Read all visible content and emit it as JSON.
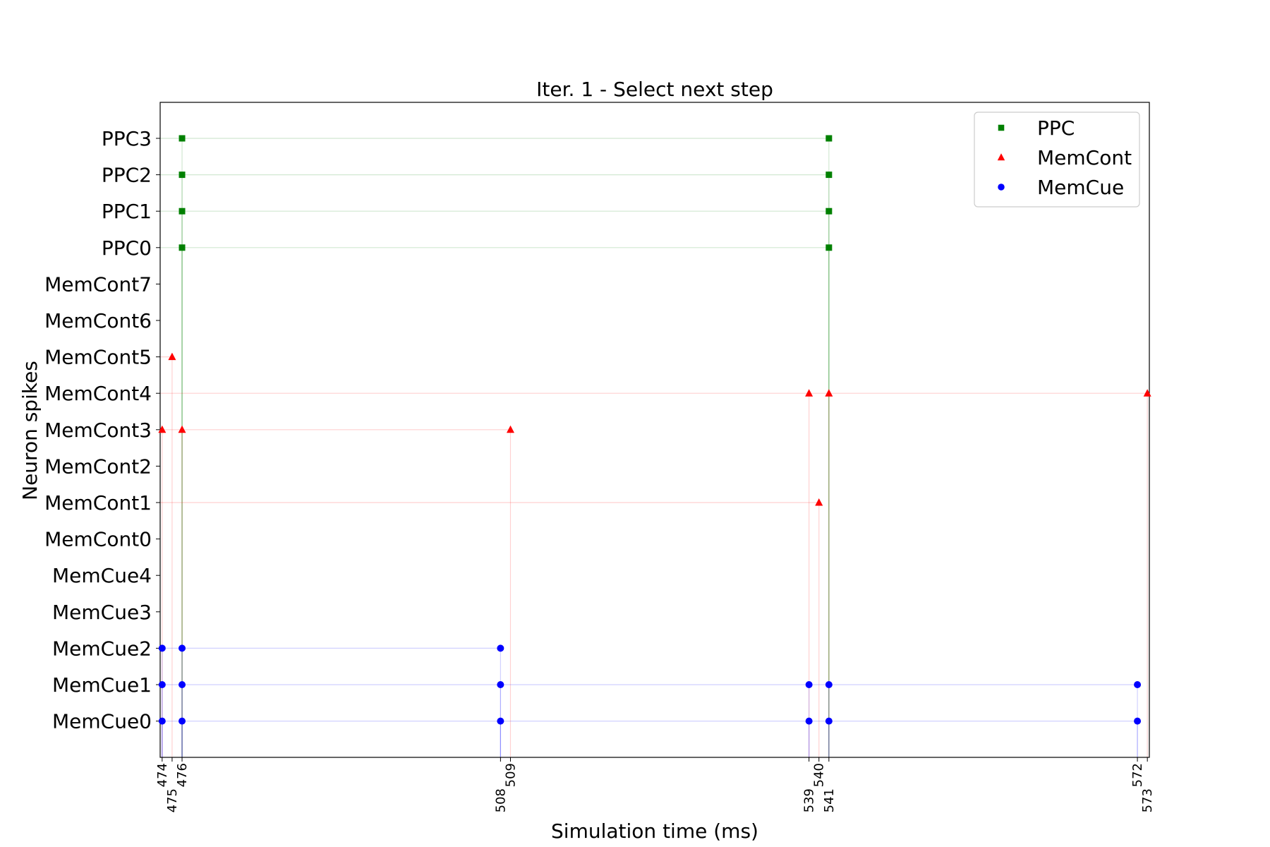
{
  "chart_data": {
    "type": "scatter",
    "title": "Iter. 1 - Select next step",
    "xlabel": "Simulation time (ms)",
    "ylabel": "Neuron spikes",
    "xlim": [
      473.8,
      573.2
    ],
    "x_ticks": [
      474,
      475,
      476,
      508,
      509,
      539,
      540,
      541,
      572,
      573
    ],
    "y_categories": [
      "MemCue0",
      "MemCue1",
      "MemCue2",
      "MemCue3",
      "MemCue4",
      "MemCont0",
      "MemCont1",
      "MemCont2",
      "MemCont3",
      "MemCont4",
      "MemCont5",
      "MemCont6",
      "MemCont7",
      "PPC0",
      "PPC1",
      "PPC2",
      "PPC3"
    ],
    "legend_position": "top-right",
    "grid": false,
    "series": [
      {
        "name": "PPC",
        "color": "#008000",
        "marker": "square",
        "points": [
          {
            "x": 476,
            "y": "PPC0"
          },
          {
            "x": 476,
            "y": "PPC1"
          },
          {
            "x": 476,
            "y": "PPC2"
          },
          {
            "x": 476,
            "y": "PPC3"
          },
          {
            "x": 541,
            "y": "PPC0"
          },
          {
            "x": 541,
            "y": "PPC1"
          },
          {
            "x": 541,
            "y": "PPC2"
          },
          {
            "x": 541,
            "y": "PPC3"
          }
        ]
      },
      {
        "name": "MemCont",
        "color": "#ff0000",
        "marker": "triangle",
        "points": [
          {
            "x": 474,
            "y": "MemCont3"
          },
          {
            "x": 475,
            "y": "MemCont5"
          },
          {
            "x": 476,
            "y": "MemCont3"
          },
          {
            "x": 509,
            "y": "MemCont3"
          },
          {
            "x": 539,
            "y": "MemCont4"
          },
          {
            "x": 540,
            "y": "MemCont1"
          },
          {
            "x": 541,
            "y": "MemCont4"
          },
          {
            "x": 573,
            "y": "MemCont4"
          }
        ]
      },
      {
        "name": "MemCue",
        "color": "#0000ff",
        "marker": "circle",
        "points": [
          {
            "x": 474,
            "y": "MemCue0"
          },
          {
            "x": 474,
            "y": "MemCue1"
          },
          {
            "x": 474,
            "y": "MemCue2"
          },
          {
            "x": 476,
            "y": "MemCue0"
          },
          {
            "x": 476,
            "y": "MemCue1"
          },
          {
            "x": 476,
            "y": "MemCue2"
          },
          {
            "x": 508,
            "y": "MemCue0"
          },
          {
            "x": 508,
            "y": "MemCue1"
          },
          {
            "x": 508,
            "y": "MemCue2"
          },
          {
            "x": 539,
            "y": "MemCue0"
          },
          {
            "x": 539,
            "y": "MemCue1"
          },
          {
            "x": 541,
            "y": "MemCue0"
          },
          {
            "x": 541,
            "y": "MemCue1"
          },
          {
            "x": 572,
            "y": "MemCue0"
          },
          {
            "x": 572,
            "y": "MemCue1"
          }
        ]
      }
    ]
  }
}
